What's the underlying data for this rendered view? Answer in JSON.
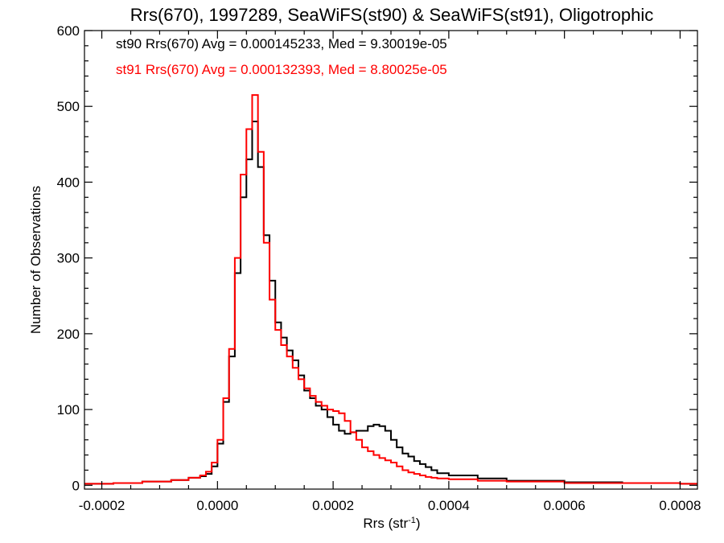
{
  "chart_data": {
    "type": "line",
    "title": "Rrs(670), 1997289, SeaWiFS(st90) & SeaWiFS(st91), Oligotrophic",
    "xlabel": "Rrs (str",
    "xlabel_sup": "-1",
    "xlabel_close": ")",
    "ylabel": "Number of Observations",
    "xlim": [
      -0.00023,
      0.00083
    ],
    "ylim": [
      -5,
      600
    ],
    "x_ticks": [
      -0.0002,
      0.0,
      0.0002,
      0.0004,
      0.0006,
      0.0008
    ],
    "x_tick_labels": [
      "-0.0002",
      "0.0000",
      "0.0002",
      "0.0004",
      "0.0006",
      "0.0008"
    ],
    "y_ticks": [
      0,
      100,
      200,
      300,
      400,
      500,
      600
    ],
    "y_tick_labels": [
      "0",
      "100",
      "200",
      "300",
      "400",
      "500",
      "600"
    ],
    "grid": false,
    "step": true,
    "series": [
      {
        "name": "st90",
        "legend": "st90 Rrs(670) Avg = 0.000145233, Med = 9.30019e-05",
        "color": "#000000",
        "x": [
          -0.00023,
          -0.00018,
          -0.00013,
          -8e-05,
          -5e-05,
          -3e-05,
          -2e-05,
          -1e-05,
          0.0,
          1e-05,
          2e-05,
          3e-05,
          4e-05,
          5e-05,
          6e-05,
          7e-05,
          8e-05,
          9e-05,
          0.0001,
          0.00011,
          0.00012,
          0.00013,
          0.00014,
          0.00015,
          0.00016,
          0.00017,
          0.00018,
          0.00019,
          0.0002,
          0.00021,
          0.00022,
          0.00023,
          0.00024,
          0.00025,
          0.00026,
          0.00027,
          0.00028,
          0.00029,
          0.0003,
          0.00031,
          0.00032,
          0.00033,
          0.00034,
          0.00035,
          0.00036,
          0.00037,
          0.00038,
          0.0004,
          0.00045,
          0.0005,
          0.0006,
          0.0007,
          0.0008,
          0.00083
        ],
        "y": [
          2,
          3,
          5,
          7,
          10,
          12,
          15,
          25,
          55,
          110,
          170,
          280,
          380,
          430,
          480,
          420,
          330,
          270,
          215,
          195,
          178,
          165,
          145,
          125,
          115,
          105,
          100,
          90,
          80,
          72,
          68,
          70,
          72,
          72,
          78,
          80,
          78,
          72,
          60,
          50,
          42,
          38,
          32,
          28,
          24,
          20,
          16,
          13,
          9,
          6,
          4,
          3,
          2,
          2
        ]
      },
      {
        "name": "st91",
        "legend": "st91 Rrs(670) Avg = 0.000132393, Med = 8.80025e-05",
        "color": "#ff0000",
        "x": [
          -0.00023,
          -0.00018,
          -0.00013,
          -8e-05,
          -5e-05,
          -3e-05,
          -2e-05,
          -1e-05,
          0.0,
          1e-05,
          2e-05,
          3e-05,
          4e-05,
          5e-05,
          6e-05,
          7e-05,
          8e-05,
          9e-05,
          0.0001,
          0.00011,
          0.00012,
          0.00013,
          0.00014,
          0.00015,
          0.00016,
          0.00017,
          0.00018,
          0.00019,
          0.0002,
          0.00021,
          0.00022,
          0.00023,
          0.00024,
          0.00025,
          0.00026,
          0.00027,
          0.00028,
          0.00029,
          0.0003,
          0.00031,
          0.00032,
          0.00033,
          0.00034,
          0.00035,
          0.00036,
          0.00037,
          0.00038,
          0.0004,
          0.00045,
          0.0005,
          0.0006,
          0.0007,
          0.0008,
          0.00083
        ],
        "y": [
          2,
          3,
          5,
          7,
          10,
          13,
          18,
          30,
          60,
          115,
          180,
          300,
          410,
          470,
          515,
          440,
          320,
          245,
          205,
          185,
          170,
          155,
          140,
          128,
          118,
          110,
          105,
          100,
          98,
          95,
          85,
          70,
          60,
          50,
          45,
          40,
          36,
          33,
          30,
          25,
          20,
          17,
          15,
          13,
          11,
          10,
          9,
          8,
          6,
          5,
          3,
          3,
          2,
          2
        ]
      }
    ]
  }
}
